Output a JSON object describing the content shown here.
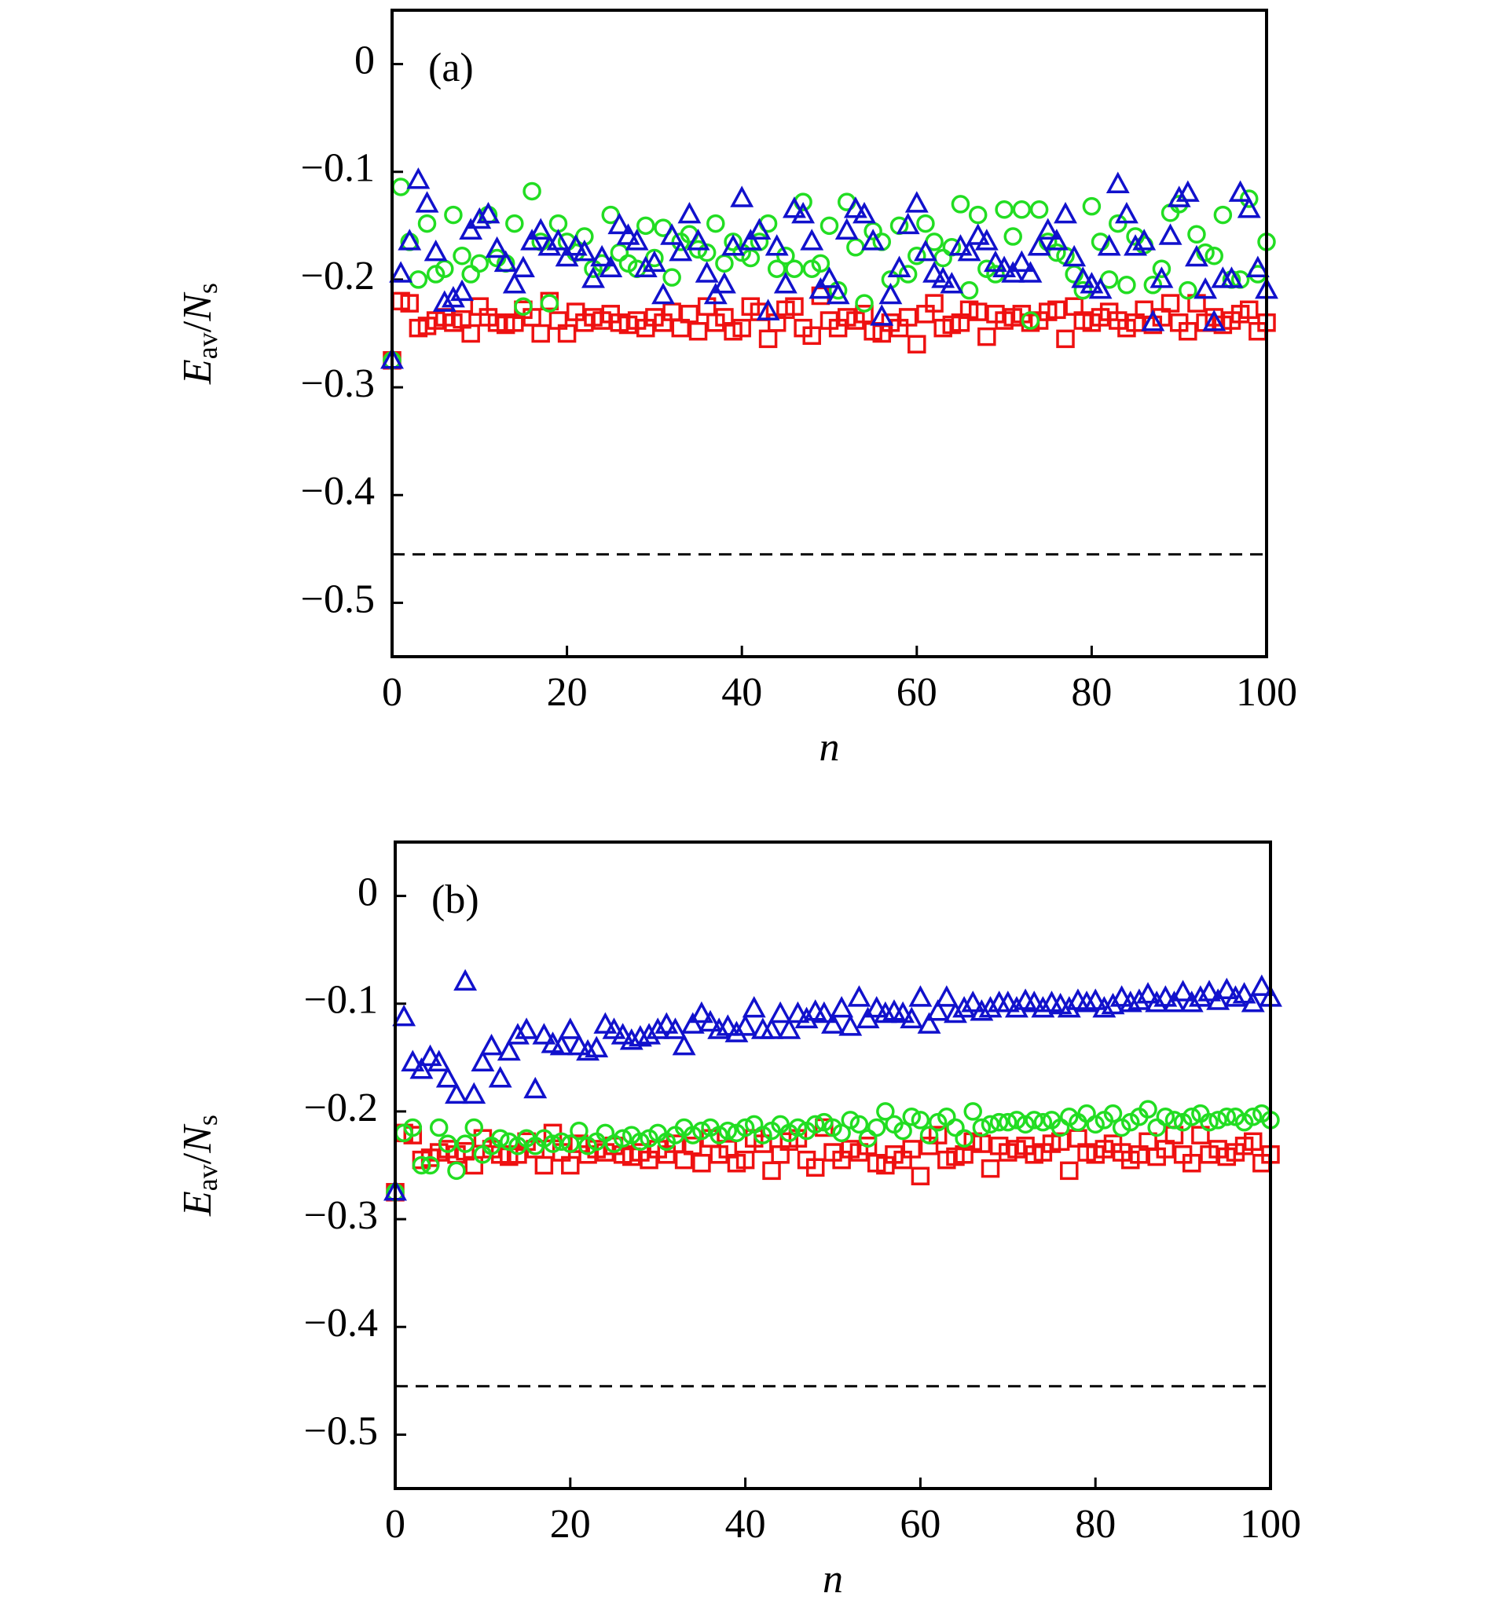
{
  "chart_data": [
    {
      "type": "scatter",
      "annotation": "(a)",
      "xlabel": "n",
      "ylabel": [
        "E",
        "av",
        "/",
        "N",
        "s"
      ],
      "xlim": [
        0,
        100
      ],
      "ylim": [
        -0.55,
        0.05
      ],
      "xticks": [
        0,
        20,
        40,
        60,
        80,
        100
      ],
      "yticks": [
        0,
        {
          "value": -0.1,
          "label": "−0.1"
        },
        {
          "value": -0.2,
          "label": "−0.2"
        },
        {
          "value": -0.3,
          "label": "−0.3"
        },
        {
          "value": -0.4,
          "label": "−0.4"
        },
        {
          "value": -0.5,
          "label": "−0.5"
        }
      ],
      "reference_line": -0.455,
      "x": [
        0,
        1,
        2,
        3,
        4,
        5,
        6,
        7,
        8,
        9,
        10,
        11,
        12,
        13,
        14,
        15,
        16,
        17,
        18,
        19,
        20,
        21,
        22,
        23,
        24,
        25,
        26,
        27,
        28,
        29,
        30,
        31,
        32,
        33,
        34,
        35,
        36,
        37,
        38,
        39,
        40,
        41,
        42,
        43,
        44,
        45,
        46,
        47,
        48,
        49,
        50,
        51,
        52,
        53,
        54,
        55,
        56,
        57,
        58,
        59,
        60,
        61,
        62,
        63,
        64,
        65,
        66,
        67,
        68,
        69,
        70,
        71,
        72,
        73,
        74,
        75,
        76,
        77,
        78,
        79,
        80,
        81,
        82,
        83,
        84,
        85,
        86,
        87,
        88,
        89,
        90,
        91,
        92,
        93,
        94,
        95,
        96,
        97,
        98,
        99,
        100
      ],
      "series": [
        {
          "color": "#ee1111",
          "marker": "square",
          "values": [
            -0.275,
            -0.22,
            -0.222,
            -0.245,
            -0.243,
            -0.238,
            -0.235,
            -0.24,
            -0.237,
            -0.25,
            -0.225,
            -0.235,
            -0.24,
            -0.242,
            -0.24,
            -0.228,
            -0.235,
            -0.25,
            -0.22,
            -0.238,
            -0.25,
            -0.23,
            -0.24,
            -0.235,
            -0.238,
            -0.232,
            -0.24,
            -0.242,
            -0.238,
            -0.245,
            -0.235,
            -0.24,
            -0.23,
            -0.245,
            -0.232,
            -0.248,
            -0.225,
            -0.24,
            -0.235,
            -0.248,
            -0.245,
            -0.225,
            -0.23,
            -0.255,
            -0.24,
            -0.228,
            -0.225,
            -0.245,
            -0.252,
            -0.215,
            -0.238,
            -0.245,
            -0.235,
            -0.238,
            -0.232,
            -0.248,
            -0.25,
            -0.24,
            -0.245,
            -0.235,
            -0.26,
            -0.232,
            -0.222,
            -0.245,
            -0.242,
            -0.24,
            -0.228,
            -0.23,
            -0.253,
            -0.232,
            -0.238,
            -0.235,
            -0.232,
            -0.24,
            -0.238,
            -0.23,
            -0.228,
            -0.255,
            -0.225,
            -0.238,
            -0.24,
            -0.235,
            -0.23,
            -0.238,
            -0.245,
            -0.24,
            -0.228,
            -0.242,
            -0.235,
            -0.222,
            -0.24,
            -0.248,
            -0.222,
            -0.24,
            -0.235,
            -0.242,
            -0.238,
            -0.232,
            -0.228,
            -0.248,
            -0.24
          ]
        },
        {
          "color": "#22dd22",
          "marker": "circle",
          "values": [
            -0.275,
            -0.114,
            -0.165,
            -0.2,
            -0.148,
            -0.195,
            -0.19,
            -0.14,
            -0.178,
            -0.195,
            -0.185,
            -0.14,
            -0.18,
            -0.185,
            -0.148,
            -0.225,
            -0.118,
            -0.165,
            -0.222,
            -0.148,
            -0.165,
            -0.175,
            -0.16,
            -0.19,
            -0.185,
            -0.14,
            -0.175,
            -0.185,
            -0.19,
            -0.15,
            -0.18,
            -0.152,
            -0.198,
            -0.165,
            -0.158,
            -0.172,
            -0.175,
            -0.148,
            -0.185,
            -0.165,
            -0.175,
            -0.18,
            -0.165,
            -0.148,
            -0.19,
            -0.178,
            -0.19,
            -0.128,
            -0.19,
            -0.185,
            -0.15,
            -0.21,
            -0.128,
            -0.17,
            -0.222,
            -0.155,
            -0.165,
            -0.2,
            -0.15,
            -0.195,
            -0.178,
            -0.148,
            -0.165,
            -0.18,
            -0.17,
            -0.13,
            -0.21,
            -0.14,
            -0.19,
            -0.195,
            -0.135,
            -0.16,
            -0.135,
            -0.238,
            -0.135,
            -0.165,
            -0.175,
            -0.178,
            -0.195,
            -0.21,
            -0.132,
            -0.165,
            -0.2,
            -0.148,
            -0.205,
            -0.16,
            -0.168,
            -0.205,
            -0.19,
            -0.138,
            -0.13,
            -0.21,
            -0.158,
            -0.175,
            -0.178,
            -0.14,
            -0.2,
            -0.2,
            -0.125,
            -0.195,
            -0.165
          ]
        },
        {
          "color": "#1111cc",
          "marker": "triangle",
          "values": [
            -0.275,
            -0.195,
            -0.165,
            -0.108,
            -0.13,
            -0.175,
            -0.222,
            -0.218,
            -0.212,
            -0.155,
            -0.145,
            -0.14,
            -0.172,
            -0.185,
            -0.205,
            -0.19,
            -0.165,
            -0.155,
            -0.17,
            -0.165,
            -0.18,
            -0.17,
            -0.175,
            -0.2,
            -0.18,
            -0.19,
            -0.15,
            -0.16,
            -0.165,
            -0.19,
            -0.185,
            -0.215,
            -0.16,
            -0.175,
            -0.14,
            -0.165,
            -0.195,
            -0.215,
            -0.205,
            -0.17,
            -0.125,
            -0.165,
            -0.155,
            -0.23,
            -0.17,
            -0.205,
            -0.135,
            -0.14,
            -0.165,
            -0.21,
            -0.2,
            -0.215,
            -0.155,
            -0.135,
            -0.14,
            -0.165,
            -0.235,
            -0.215,
            -0.19,
            -0.15,
            -0.13,
            -0.175,
            -0.195,
            -0.2,
            -0.205,
            -0.17,
            -0.175,
            -0.16,
            -0.165,
            -0.185,
            -0.19,
            -0.195,
            -0.185,
            -0.195,
            -0.17,
            -0.155,
            -0.165,
            -0.14,
            -0.18,
            -0.2,
            -0.205,
            -0.21,
            -0.17,
            -0.112,
            -0.14,
            -0.17,
            -0.165,
            -0.24,
            -0.2,
            -0.16,
            -0.125,
            -0.12,
            -0.18,
            -0.21,
            -0.24,
            -0.2,
            -0.2,
            -0.12,
            -0.135,
            -0.19,
            -0.21
          ]
        }
      ]
    },
    {
      "type": "scatter",
      "annotation": "(b)",
      "xlabel": "n",
      "ylabel": [
        "E",
        "av",
        "/",
        "N",
        "s"
      ],
      "xlim": [
        0,
        100
      ],
      "ylim": [
        -0.55,
        0.05
      ],
      "xticks": [
        0,
        20,
        40,
        60,
        80,
        100
      ],
      "yticks": [
        0,
        {
          "value": -0.1,
          "label": "−0.1"
        },
        {
          "value": -0.2,
          "label": "−0.2"
        },
        {
          "value": -0.3,
          "label": "−0.3"
        },
        {
          "value": -0.4,
          "label": "−0.4"
        },
        {
          "value": -0.5,
          "label": "−0.5"
        }
      ],
      "reference_line": -0.455,
      "x": [
        0,
        1,
        2,
        3,
        4,
        5,
        6,
        7,
        8,
        9,
        10,
        11,
        12,
        13,
        14,
        15,
        16,
        17,
        18,
        19,
        20,
        21,
        22,
        23,
        24,
        25,
        26,
        27,
        28,
        29,
        30,
        31,
        32,
        33,
        34,
        35,
        36,
        37,
        38,
        39,
        40,
        41,
        42,
        43,
        44,
        45,
        46,
        47,
        48,
        49,
        50,
        51,
        52,
        53,
        54,
        55,
        56,
        57,
        58,
        59,
        60,
        61,
        62,
        63,
        64,
        65,
        66,
        67,
        68,
        69,
        70,
        71,
        72,
        73,
        74,
        75,
        76,
        77,
        78,
        79,
        80,
        81,
        82,
        83,
        84,
        85,
        86,
        87,
        88,
        89,
        90,
        91,
        92,
        93,
        94,
        95,
        96,
        97,
        98,
        99,
        100
      ],
      "series": [
        {
          "color": "#ee1111",
          "marker": "square",
          "values": [
            -0.275,
            -0.22,
            -0.222,
            -0.245,
            -0.243,
            -0.238,
            -0.235,
            -0.24,
            -0.237,
            -0.25,
            -0.225,
            -0.235,
            -0.24,
            -0.242,
            -0.24,
            -0.228,
            -0.235,
            -0.25,
            -0.22,
            -0.238,
            -0.25,
            -0.23,
            -0.24,
            -0.235,
            -0.238,
            -0.232,
            -0.24,
            -0.242,
            -0.238,
            -0.245,
            -0.235,
            -0.24,
            -0.23,
            -0.245,
            -0.232,
            -0.248,
            -0.225,
            -0.24,
            -0.235,
            -0.248,
            -0.245,
            -0.225,
            -0.23,
            -0.255,
            -0.24,
            -0.228,
            -0.225,
            -0.245,
            -0.252,
            -0.215,
            -0.238,
            -0.245,
            -0.235,
            -0.238,
            -0.232,
            -0.248,
            -0.25,
            -0.24,
            -0.245,
            -0.235,
            -0.26,
            -0.232,
            -0.222,
            -0.245,
            -0.242,
            -0.24,
            -0.228,
            -0.23,
            -0.253,
            -0.232,
            -0.238,
            -0.235,
            -0.232,
            -0.24,
            -0.238,
            -0.23,
            -0.228,
            -0.255,
            -0.225,
            -0.238,
            -0.24,
            -0.235,
            -0.23,
            -0.238,
            -0.245,
            -0.24,
            -0.228,
            -0.242,
            -0.235,
            -0.222,
            -0.24,
            -0.248,
            -0.222,
            -0.24,
            -0.235,
            -0.242,
            -0.238,
            -0.232,
            -0.228,
            -0.248,
            -0.24
          ]
        },
        {
          "color": "#22dd22",
          "marker": "circle",
          "values": [
            -0.275,
            -0.22,
            -0.215,
            -0.25,
            -0.25,
            -0.215,
            -0.23,
            -0.255,
            -0.23,
            -0.215,
            -0.24,
            -0.232,
            -0.225,
            -0.228,
            -0.232,
            -0.225,
            -0.232,
            -0.225,
            -0.23,
            -0.228,
            -0.23,
            -0.218,
            -0.232,
            -0.228,
            -0.22,
            -0.23,
            -0.225,
            -0.222,
            -0.228,
            -0.225,
            -0.22,
            -0.228,
            -0.222,
            -0.215,
            -0.222,
            -0.218,
            -0.215,
            -0.222,
            -0.218,
            -0.22,
            -0.215,
            -0.212,
            -0.222,
            -0.218,
            -0.212,
            -0.22,
            -0.215,
            -0.218,
            -0.212,
            -0.21,
            -0.215,
            -0.22,
            -0.208,
            -0.212,
            -0.225,
            -0.215,
            -0.2,
            -0.212,
            -0.218,
            -0.205,
            -0.208,
            -0.222,
            -0.21,
            -0.205,
            -0.215,
            -0.225,
            -0.2,
            -0.215,
            -0.212,
            -0.21,
            -0.21,
            -0.208,
            -0.212,
            -0.208,
            -0.21,
            -0.208,
            -0.215,
            -0.205,
            -0.21,
            -0.202,
            -0.212,
            -0.208,
            -0.202,
            -0.215,
            -0.21,
            -0.205,
            -0.198,
            -0.215,
            -0.205,
            -0.208,
            -0.21,
            -0.205,
            -0.202,
            -0.21,
            -0.208,
            -0.205,
            -0.205,
            -0.21,
            -0.205,
            -0.202,
            -0.208
          ]
        },
        {
          "color": "#1111cc",
          "marker": "triangle",
          "values": [
            -0.275,
            -0.113,
            -0.155,
            -0.162,
            -0.15,
            -0.155,
            -0.17,
            -0.185,
            -0.08,
            -0.185,
            -0.155,
            -0.14,
            -0.17,
            -0.145,
            -0.13,
            -0.125,
            -0.18,
            -0.13,
            -0.138,
            -0.14,
            -0.125,
            -0.14,
            -0.145,
            -0.142,
            -0.12,
            -0.125,
            -0.13,
            -0.135,
            -0.132,
            -0.13,
            -0.125,
            -0.12,
            -0.125,
            -0.14,
            -0.12,
            -0.11,
            -0.118,
            -0.125,
            -0.122,
            -0.128,
            -0.122,
            -0.105,
            -0.125,
            -0.125,
            -0.11,
            -0.125,
            -0.11,
            -0.115,
            -0.108,
            -0.11,
            -0.12,
            -0.105,
            -0.122,
            -0.095,
            -0.115,
            -0.105,
            -0.11,
            -0.108,
            -0.11,
            -0.115,
            -0.095,
            -0.12,
            -0.108,
            -0.095,
            -0.11,
            -0.105,
            -0.1,
            -0.108,
            -0.105,
            -0.1,
            -0.1,
            -0.105,
            -0.098,
            -0.1,
            -0.105,
            -0.1,
            -0.102,
            -0.105,
            -0.098,
            -0.1,
            -0.098,
            -0.105,
            -0.102,
            -0.095,
            -0.1,
            -0.098,
            -0.092,
            -0.1,
            -0.095,
            -0.1,
            -0.09,
            -0.1,
            -0.095,
            -0.09,
            -0.098,
            -0.088,
            -0.095,
            -0.092,
            -0.1,
            -0.085,
            -0.095
          ]
        }
      ]
    }
  ]
}
